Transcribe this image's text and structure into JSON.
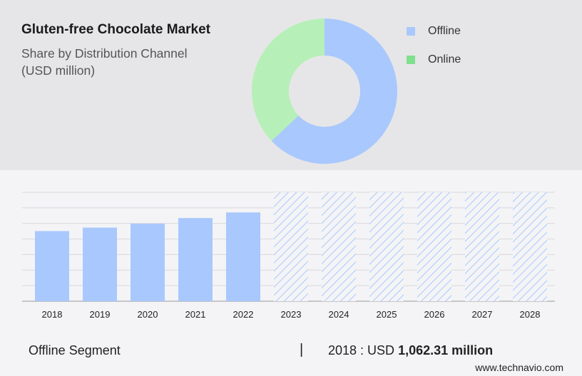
{
  "header": {
    "title": "Gluten-free Chocolate Market",
    "subtitle": "Share by Distribution Channel",
    "unit": "(USD million)"
  },
  "legend": [
    {
      "label": "Offline",
      "color": "#a9c8fd"
    },
    {
      "label": "Online",
      "color": "#7fe08d"
    }
  ],
  "footer": {
    "segment": "Offline Segment",
    "separator": "|",
    "year_prefix": "2018 : USD ",
    "value": "1,062.31 million"
  },
  "brand": "www.technavio.com",
  "chart_data": [
    {
      "type": "pie",
      "donut": true,
      "categories": [
        "Offline",
        "Online"
      ],
      "values": [
        63,
        37
      ],
      "colors": [
        "#a9c8fd",
        "#b6f0b8"
      ]
    },
    {
      "type": "bar",
      "categories": [
        "2018",
        "2019",
        "2020",
        "2021",
        "2022",
        "2023",
        "2024",
        "2025",
        "2026",
        "2027",
        "2028"
      ],
      "values": [
        1062.31,
        1115,
        1175,
        1260,
        1345,
        null,
        null,
        null,
        null,
        null,
        null
      ],
      "forecast": [
        false,
        false,
        false,
        false,
        false,
        true,
        true,
        true,
        true,
        true,
        true
      ],
      "ylim": [
        0,
        1650
      ],
      "grid": true,
      "bar_color": "#a9c8fd",
      "hatch_color": "#a9c8fd"
    }
  ]
}
